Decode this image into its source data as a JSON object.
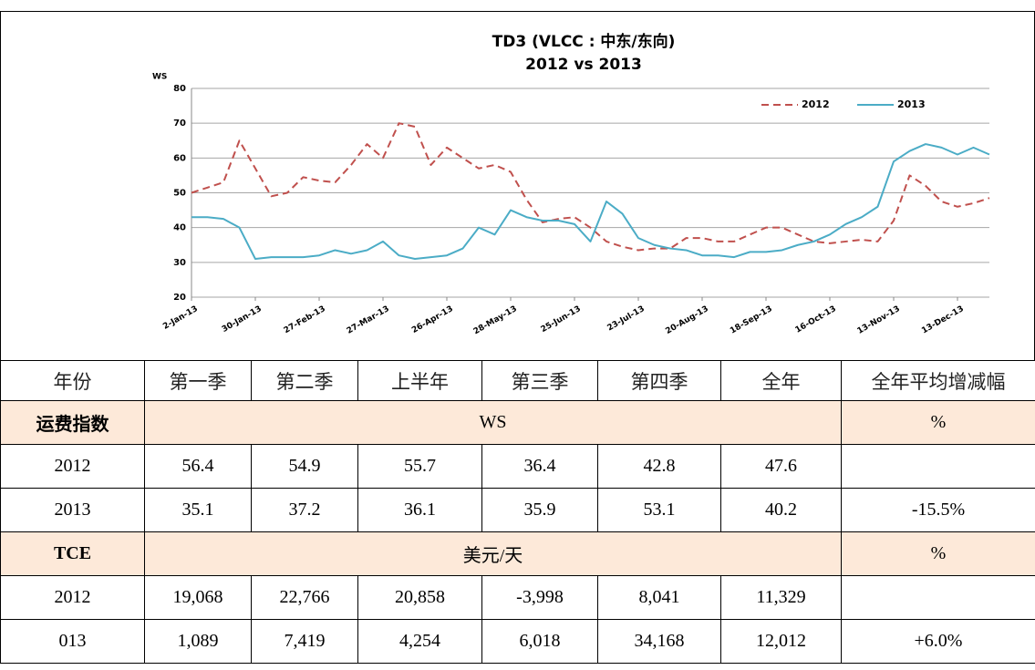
{
  "chart_data": {
    "type": "line",
    "title": "TD3 (VLCC : 中东/东向)",
    "subtitle": "2012 vs 2013",
    "y_label": "WS",
    "categories": [
      "2-Jan-13",
      null,
      null,
      null,
      "30-Jan-13",
      null,
      null,
      null,
      "27-Feb-13",
      null,
      null,
      null,
      "27-Mar-13",
      null,
      null,
      null,
      "26-Apr-13",
      null,
      null,
      null,
      "28-May-13",
      null,
      null,
      null,
      "25-Jun-13",
      null,
      null,
      null,
      "23-Jul-13",
      null,
      null,
      null,
      "20-Aug-13",
      null,
      null,
      null,
      "18-Sep-13",
      null,
      null,
      null,
      "16-Oct-13",
      null,
      null,
      null,
      "13-Nov-13",
      null,
      null,
      null,
      "13-Dec-13",
      null,
      null
    ],
    "series": [
      {
        "name": "2012",
        "color": "#c0504d",
        "dashed": true,
        "values": [
          50,
          51.5,
          53,
          65,
          57,
          49,
          50,
          54.5,
          53.5,
          53,
          58,
          64,
          60,
          70,
          69,
          58,
          63,
          60,
          57,
          58,
          56,
          48,
          41.5,
          42.5,
          43,
          40,
          36,
          34.5,
          33.5,
          34,
          34,
          37,
          37,
          36,
          36,
          38,
          40,
          40,
          38,
          36,
          35.5,
          36,
          36.5,
          36,
          42,
          55,
          52,
          47.5,
          46,
          47,
          48.5
        ]
      },
      {
        "name": "2013",
        "color": "#4bacc6",
        "dashed": false,
        "values": [
          43,
          43,
          42.5,
          40,
          31,
          31.5,
          31.5,
          31.5,
          32,
          33.5,
          32.5,
          33.5,
          36,
          32,
          31,
          31.5,
          32,
          34,
          40,
          38,
          45,
          43,
          42,
          42,
          41,
          36,
          47.5,
          44,
          37,
          35,
          34,
          33.5,
          32,
          32,
          31.5,
          33,
          33,
          33.5,
          35,
          36,
          38,
          41,
          43,
          46,
          59,
          62,
          64,
          63,
          61,
          63,
          61
        ]
      }
    ],
    "ylim": [
      20,
      80
    ],
    "yticks": [
      20,
      30,
      40,
      50,
      60,
      70,
      80
    ],
    "grid": true,
    "legend": "top-right"
  },
  "table": {
    "header": [
      "年份",
      "第一季",
      "第二季",
      "上半年",
      "第三季",
      "第四季",
      "全年",
      "全年平均增减幅"
    ],
    "rows": [
      [
        "运费指数",
        "WS",
        "%"
      ],
      [
        "2012",
        "56.4",
        "54.9",
        "55.7",
        "36.4",
        "42.8",
        "47.6"
      ],
      [
        "2013",
        "35.1",
        "37.2",
        "36.1",
        "35.9",
        "53.1",
        "40.2",
        "-15.5%"
      ],
      [
        "TCE",
        "美元/天",
        "%"
      ],
      [
        "2012",
        "19,068",
        "22,766",
        "20,858",
        "-3,998",
        "8,041",
        "11,329"
      ],
      [
        "013",
        "1,089",
        "7,419",
        "4,254",
        "6,018",
        "34,168",
        "12,012",
        "+6.0%"
      ]
    ]
  }
}
